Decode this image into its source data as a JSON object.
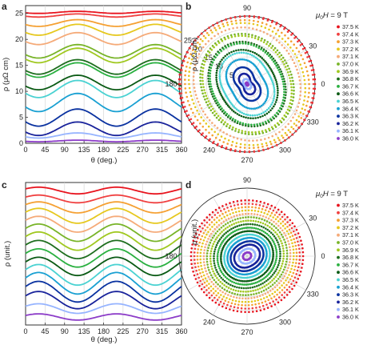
{
  "figure": {
    "panels": [
      {
        "letter": "a",
        "ylabel": "ρ (μΩ cm)",
        "xlabel": "θ (deg.)",
        "xticks": [
          "0",
          "45",
          "90",
          "135",
          "180",
          "225",
          "270",
          "315",
          "360"
        ],
        "yticks": [
          "0",
          "5",
          "10",
          "15",
          "20",
          "25"
        ]
      },
      {
        "letter": "b",
        "ylabel": "ρ (μΩ cm)",
        "field_label": "μ0H = 9 T",
        "angle_ticks": [
          "90",
          "30",
          "0",
          "330",
          "300",
          "270",
          "240",
          "180"
        ],
        "radial_ticks": [
          "25",
          "20",
          "15",
          "10",
          "5"
        ]
      },
      {
        "letter": "c",
        "ylabel": "ρ (unit.)",
        "xlabel": "θ (deg.)",
        "xticks": [
          "0",
          "45",
          "90",
          "135",
          "180",
          "225",
          "270",
          "315",
          "360"
        ]
      },
      {
        "letter": "d",
        "ylabel": "ρ (unit.)",
        "field_label": "μ0H = 9 T",
        "angle_ticks": [
          "90",
          "30",
          "0",
          "330",
          "300",
          "270",
          "240",
          "180"
        ]
      }
    ],
    "legend": [
      "37.5 K",
      "37.4 K",
      "37.3 K",
      "37.2 K",
      "37.1 K",
      "37.0 K",
      "36.9 K",
      "36.8 K",
      "36.7 K",
      "36.6 K",
      "36.5 K",
      "36.4 K",
      "36.3 K",
      "36.2 K",
      "36.1 K",
      "36.0 K"
    ],
    "colors": [
      "#e8141e",
      "#f04040",
      "#f5a032",
      "#e6c81e",
      "#f5aa78",
      "#78b428",
      "#a0c820",
      "#1e6e1e",
      "#2ab040",
      "#0a5a14",
      "#4ad2d2",
      "#19a0d2",
      "#0a32a0",
      "#19239b",
      "#96b4ff",
      "#8c3cc8"
    ]
  },
  "chart_data": [
    {
      "panel": "a",
      "type": "line",
      "xlabel": "θ (deg.)",
      "ylabel": "ρ (μΩ cm)",
      "xlim": [
        0,
        360
      ],
      "ylim": [
        0,
        26.5
      ],
      "model": "rho(θ) = base + amp * cos²(θ − 120°)",
      "series": [
        {
          "name": "37.5 K",
          "base": 25.0,
          "amp": 0.4
        },
        {
          "name": "37.4 K",
          "base": 24.3,
          "amp": 0.6
        },
        {
          "name": "37.3 K",
          "base": 22.5,
          "amp": 1.3
        },
        {
          "name": "37.2 K",
          "base": 20.8,
          "amp": 2.1
        },
        {
          "name": "37.1 K",
          "base": 19.0,
          "amp": 2.3
        },
        {
          "name": "37.0 K",
          "base": 16.4,
          "amp": 2.6
        },
        {
          "name": "36.9 K",
          "base": 15.5,
          "amp": 2.8
        },
        {
          "name": "36.8 K",
          "base": 13.3,
          "amp": 2.8
        },
        {
          "name": "36.7 K",
          "base": 12.7,
          "amp": 2.8
        },
        {
          "name": "36.6 K",
          "base": 10.3,
          "amp": 2.8
        },
        {
          "name": "36.5 K",
          "base": 8.8,
          "amp": 3.3
        },
        {
          "name": "36.4 K",
          "base": 6.1,
          "amp": 3.5
        },
        {
          "name": "36.3 K",
          "base": 3.3,
          "amp": 3.3
        },
        {
          "name": "36.2 K",
          "base": 1.5,
          "amp": 2.6
        },
        {
          "name": "36.1 K",
          "base": 1.0,
          "amp": 1.0
        },
        {
          "name": "36.0 K",
          "base": 0.3,
          "amp": 0.3
        }
      ]
    },
    {
      "panel": "b",
      "type": "scatter",
      "projection": "polar",
      "rlim": [
        0,
        25
      ],
      "series_from": "a"
    },
    {
      "panel": "c",
      "type": "line",
      "xlabel": "θ (deg.)",
      "ylabel": "ρ (unit.)",
      "xlim": [
        0,
        360
      ],
      "series_from": "a",
      "offset_display": true
    },
    {
      "panel": "d",
      "type": "scatter",
      "projection": "polar",
      "series_from": "a",
      "normalized": true
    }
  ]
}
